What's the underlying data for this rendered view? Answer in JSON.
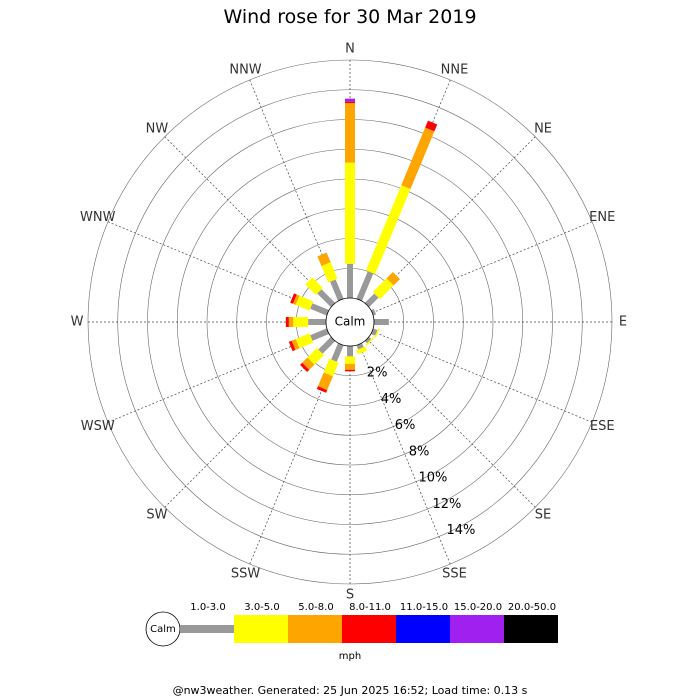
{
  "chart_data": {
    "type": "wind-rose",
    "title": "Wind rose for 30 Mar 2019",
    "directions": [
      "N",
      "NNE",
      "NE",
      "ENE",
      "E",
      "ESE",
      "SE",
      "SSE",
      "S",
      "SSW",
      "SW",
      "WSW",
      "W",
      "WNW",
      "NW",
      "NNW"
    ],
    "radial_ticks": [
      "2%",
      "4%",
      "6%",
      "8%",
      "10%",
      "12%",
      "14%"
    ],
    "radial_max_percent": 16,
    "calm_label": "Calm",
    "speed_unit": "mph",
    "speed_bins": [
      {
        "label": "1.0-3.0",
        "color": "#999999"
      },
      {
        "label": "3.0-5.0",
        "color": "#ffff00"
      },
      {
        "label": "5.0-8.0",
        "color": "#ffa500"
      },
      {
        "label": "8.0-11.0",
        "color": "#ff0000"
      },
      {
        "label": "11.0-15.0",
        "color": "#0000ff"
      },
      {
        "label": "15.0-20.0",
        "color": "#a020f0"
      },
      {
        "label": "20.0-50.0",
        "color": "#000000"
      }
    ],
    "series_percent_by_direction": {
      "N": [
        2.3,
        6.8,
        4.0,
        0.1,
        0,
        0.2,
        0
      ],
      "NNE": [
        2.0,
        6.2,
        4.2,
        0.5,
        0,
        0,
        0
      ],
      "NE": [
        0.9,
        1.3,
        0.6,
        0,
        0,
        0,
        0
      ],
      "ENE": [
        0.2,
        0,
        0,
        0,
        0,
        0,
        0
      ],
      "E": [
        1.0,
        0,
        0,
        0,
        0,
        0,
        0
      ],
      "ESE": [
        0.3,
        0.1,
        0,
        0,
        0,
        0,
        0
      ],
      "SE": [
        0.2,
        0.1,
        0,
        0,
        0,
        0,
        0
      ],
      "SSE": [
        0.3,
        0.3,
        0,
        0,
        0,
        0,
        0
      ],
      "S": [
        0.7,
        0.5,
        0.4,
        0.1,
        0,
        0,
        0
      ],
      "SSW": [
        1.2,
        1.0,
        1.0,
        0.2,
        0,
        0,
        0
      ],
      "SW": [
        1.2,
        0.9,
        0.5,
        0.2,
        0,
        0,
        0
      ],
      "WSW": [
        1.2,
        1.0,
        0.3,
        0.2,
        0,
        0,
        0
      ],
      "W": [
        1.2,
        1.0,
        0.3,
        0.2,
        0,
        0,
        0
      ],
      "WNW": [
        1.2,
        1.0,
        0.2,
        0.2,
        0,
        0,
        0
      ],
      "NW": [
        1.3,
        1.0,
        0,
        0,
        0,
        0,
        0
      ],
      "NNW": [
        1.4,
        1.2,
        0.7,
        0,
        0,
        0,
        0
      ]
    }
  },
  "footer": "@nw3weather. Generated: 25 Jun 2025 16:52; Load time: 0.13 s"
}
